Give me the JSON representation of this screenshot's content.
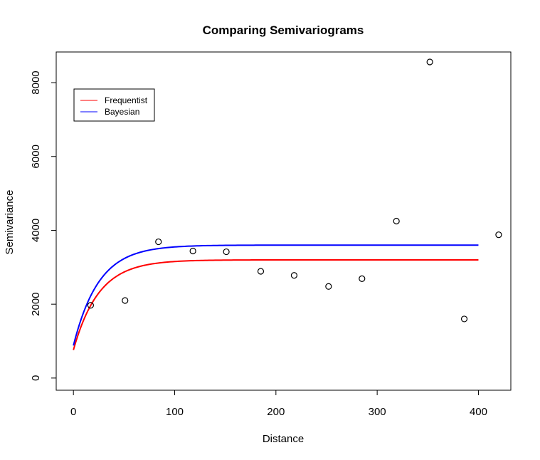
{
  "chart_data": {
    "type": "scatter",
    "title": "Comparing Semivariograms",
    "xlabel": "Distance",
    "ylabel": "Semivariance",
    "xlim": [
      -17,
      432
    ],
    "ylim": [
      -330,
      8830
    ],
    "x_ticks": [
      0,
      100,
      200,
      300,
      400
    ],
    "y_ticks": [
      0,
      2000,
      4000,
      6000,
      8000
    ],
    "grid": false,
    "legend_position": "top-left",
    "points": {
      "x": [
        17,
        51,
        84,
        118,
        151,
        185,
        218,
        252,
        285,
        319,
        352,
        386,
        420
      ],
      "y": [
        1970,
        2100,
        3690,
        3440,
        3420,
        2890,
        2780,
        2480,
        2690,
        4250,
        8560,
        1600,
        3880
      ]
    },
    "series": [
      {
        "name": "Frequentist",
        "color": "#ff0000",
        "nugget": 760,
        "psill": 2440,
        "range": 25,
        "x_range": [
          0,
          400
        ]
      },
      {
        "name": "Bayesian",
        "color": "#0000ff",
        "nugget": 880,
        "psill": 2720,
        "range": 25,
        "x_range": [
          0,
          400
        ]
      }
    ]
  }
}
